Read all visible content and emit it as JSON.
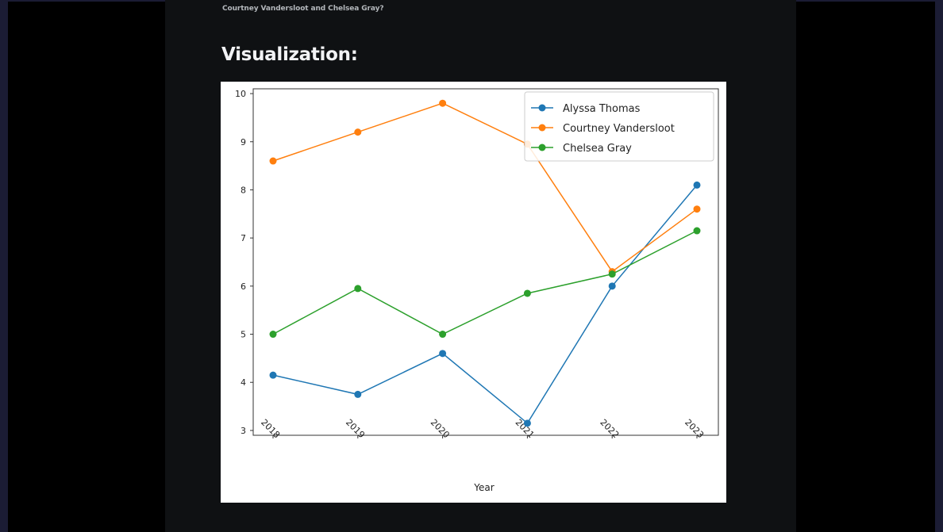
{
  "page": {
    "question_text": "Courtney Vandersloot and Chelsea Gray?",
    "section_heading": "Visualization:"
  },
  "colors": {
    "page_bg": "#1b1c34",
    "content_bg": "#0f1113",
    "chart_bg": "#ffffff"
  },
  "chart_data": {
    "type": "line",
    "title": "",
    "xlabel": "Year",
    "ylabel": "",
    "x": [
      "2018",
      "2019",
      "2020",
      "2021",
      "2022",
      "2023"
    ],
    "ylim": [
      2.9,
      10.1
    ],
    "yticks": [
      "3",
      "4",
      "5",
      "6",
      "7",
      "8",
      "9",
      "10"
    ],
    "grid": false,
    "legend_position": "top-right",
    "series": [
      {
        "name": "Alyssa Thomas",
        "color": "#1f77b4",
        "values": [
          4.15,
          3.75,
          4.6,
          3.15,
          6.0,
          8.1
        ]
      },
      {
        "name": "Courtney Vandersloot",
        "color": "#ff7f0e",
        "values": [
          8.6,
          9.2,
          9.8,
          8.95,
          6.3,
          7.6
        ]
      },
      {
        "name": "Chelsea Gray",
        "color": "#2ca02c",
        "values": [
          5.0,
          5.95,
          5.0,
          5.85,
          6.25,
          7.15
        ]
      }
    ]
  }
}
